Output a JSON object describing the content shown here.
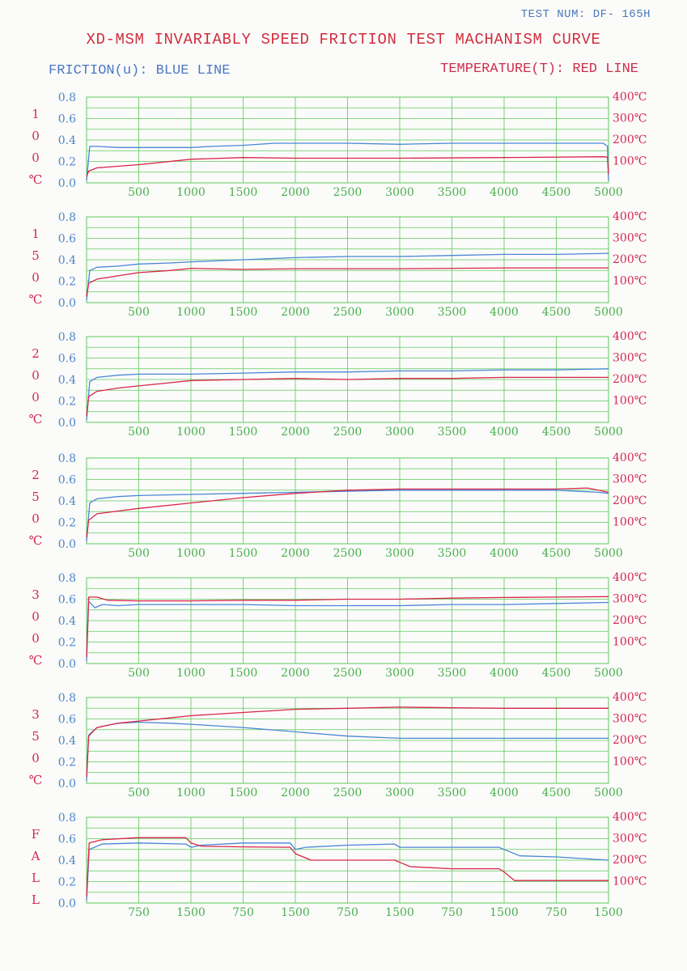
{
  "header": {
    "test_num": "TEST NUM:  DF- 165H",
    "title": "XD-MSM INVARIABLY SPEED FRICTION TEST MACHANISM CURVE",
    "friction_legend": "FRICTION(u): BLUE LINE",
    "temperature_legend": "TEMPERATURE(T): RED LINE"
  },
  "colors": {
    "friction": "#4a86d6",
    "temperature": "#d8254a",
    "grid": "#5ec95a",
    "axis_left": "#4f86c6",
    "axis_right": "#d42850",
    "tick_x": "#49b04a",
    "side_label": "#d42850"
  },
  "chart_data": [
    {
      "type": "line",
      "side_label": [
        "1",
        "0",
        "0",
        "℃"
      ],
      "x_ticks": [
        "500",
        "1000",
        "1500",
        "2000",
        "2500",
        "3000",
        "3500",
        "4000",
        "4500",
        "5000"
      ],
      "y_ticks_left": [
        "0.8",
        "0.6",
        "0.4",
        "0.2",
        "0.0"
      ],
      "y_ticks_right": [
        "400℃",
        "300℃",
        "200℃",
        "100℃"
      ],
      "xlim": [
        0,
        5000
      ],
      "ylim_left": [
        0,
        0.8
      ],
      "ylim_right": [
        0,
        400
      ],
      "grid": true,
      "series": [
        {
          "axis": "left",
          "x": [
            0,
            30,
            100,
            300,
            500,
            800,
            1000,
            1200,
            1500,
            1800,
            2000,
            2500,
            3000,
            3500,
            4000,
            4500,
            4950,
            4990,
            5000
          ],
          "y": [
            0.02,
            0.34,
            0.34,
            0.33,
            0.33,
            0.33,
            0.33,
            0.34,
            0.35,
            0.37,
            0.37,
            0.37,
            0.36,
            0.37,
            0.37,
            0.37,
            0.37,
            0.34,
            0.02
          ]
        },
        {
          "axis": "right",
          "x": [
            0,
            20,
            100,
            500,
            1000,
            1500,
            2000,
            3000,
            4000,
            4950,
            4990,
            5000
          ],
          "y": [
            30,
            55,
            70,
            85,
            110,
            118,
            115,
            115,
            118,
            122,
            120,
            40
          ]
        }
      ]
    },
    {
      "type": "line",
      "side_label": [
        "1",
        "5",
        "0",
        "℃"
      ],
      "x_ticks": [
        "500",
        "1000",
        "1500",
        "2000",
        "2500",
        "3000",
        "3500",
        "4000",
        "4500",
        "5000"
      ],
      "y_ticks_left": [
        "0.8",
        "0.6",
        "0.4",
        "0.2",
        "0.0"
      ],
      "y_ticks_right": [
        "400℃",
        "300℃",
        "200℃",
        "100℃"
      ],
      "xlim": [
        0,
        5000
      ],
      "ylim_left": [
        0,
        0.8
      ],
      "ylim_right": [
        0,
        400
      ],
      "grid": true,
      "series": [
        {
          "axis": "left",
          "x": [
            0,
            30,
            100,
            300,
            500,
            800,
            1000,
            1500,
            2000,
            2500,
            3000,
            3500,
            4000,
            4500,
            5000
          ],
          "y": [
            0.02,
            0.3,
            0.33,
            0.34,
            0.36,
            0.37,
            0.38,
            0.4,
            0.42,
            0.43,
            0.43,
            0.44,
            0.45,
            0.45,
            0.46
          ]
        },
        {
          "axis": "right",
          "x": [
            0,
            20,
            100,
            300,
            500,
            800,
            1000,
            1500,
            2000,
            3000,
            4000,
            5000
          ],
          "y": [
            30,
            90,
            110,
            125,
            140,
            150,
            160,
            155,
            158,
            158,
            162,
            162
          ]
        }
      ]
    },
    {
      "type": "line",
      "side_label": [
        "2",
        "0",
        "0",
        "℃"
      ],
      "x_ticks": [
        "500",
        "1000",
        "1500",
        "2000",
        "2500",
        "3000",
        "3500",
        "4000",
        "4500",
        "5000"
      ],
      "y_ticks_left": [
        "0.8",
        "0.6",
        "0.4",
        "0.2",
        "0.0"
      ],
      "y_ticks_right": [
        "400℃",
        "300℃",
        "200℃",
        "100℃"
      ],
      "xlim": [
        0,
        5000
      ],
      "ylim_left": [
        0,
        0.8
      ],
      "ylim_right": [
        0,
        400
      ],
      "grid": true,
      "series": [
        {
          "axis": "left",
          "x": [
            0,
            30,
            100,
            300,
            500,
            1000,
            1500,
            2000,
            2500,
            3000,
            3500,
            4000,
            4500,
            5000
          ],
          "y": [
            0.02,
            0.38,
            0.42,
            0.44,
            0.45,
            0.45,
            0.46,
            0.47,
            0.47,
            0.48,
            0.48,
            0.49,
            0.49,
            0.5
          ]
        },
        {
          "axis": "right",
          "x": [
            0,
            20,
            100,
            300,
            500,
            800,
            1000,
            1500,
            2000,
            2500,
            3000,
            3500,
            4000,
            4500,
            5000
          ],
          "y": [
            30,
            120,
            145,
            160,
            170,
            185,
            195,
            200,
            205,
            200,
            205,
            205,
            210,
            210,
            210
          ]
        }
      ]
    },
    {
      "type": "line",
      "side_label": [
        "2",
        "5",
        "0",
        "℃"
      ],
      "x_ticks": [
        "500",
        "1000",
        "1500",
        "2000",
        "2500",
        "3000",
        "3500",
        "4000",
        "4500",
        "5000"
      ],
      "y_ticks_left": [
        "0.8",
        "0.6",
        "0.4",
        "0.2",
        "0.0"
      ],
      "y_ticks_right": [
        "400℃",
        "300℃",
        "200℃",
        "100℃"
      ],
      "xlim": [
        0,
        5000
      ],
      "ylim_left": [
        0,
        0.8
      ],
      "ylim_right": [
        0,
        400
      ],
      "grid": true,
      "series": [
        {
          "axis": "left",
          "x": [
            0,
            30,
            100,
            300,
            500,
            1000,
            1500,
            2000,
            2500,
            3000,
            3500,
            4000,
            4500,
            4900,
            5000
          ],
          "y": [
            0.02,
            0.38,
            0.42,
            0.44,
            0.45,
            0.46,
            0.47,
            0.48,
            0.49,
            0.5,
            0.5,
            0.5,
            0.5,
            0.48,
            0.47
          ]
        },
        {
          "axis": "right",
          "x": [
            0,
            20,
            100,
            500,
            1000,
            1500,
            2000,
            2500,
            3000,
            3500,
            4000,
            4500,
            4800,
            5000
          ],
          "y": [
            30,
            110,
            140,
            165,
            190,
            215,
            235,
            250,
            255,
            255,
            255,
            255,
            260,
            240
          ]
        }
      ]
    },
    {
      "type": "line",
      "side_label": [
        "3",
        "0",
        "0",
        "℃"
      ],
      "x_ticks": [
        "500",
        "1000",
        "1500",
        "2000",
        "2500",
        "3000",
        "3500",
        "4000",
        "4500",
        "5000"
      ],
      "y_ticks_left": [
        "0.8",
        "0.6",
        "0.4",
        "0.2",
        "0.0"
      ],
      "y_ticks_right": [
        "400℃",
        "300℃",
        "200℃",
        "100℃"
      ],
      "xlim": [
        0,
        5000
      ],
      "ylim_left": [
        0,
        0.8
      ],
      "ylim_right": [
        0,
        400
      ],
      "grid": true,
      "series": [
        {
          "axis": "left",
          "x": [
            0,
            20,
            80,
            150,
            300,
            500,
            1000,
            1500,
            2000,
            2500,
            3000,
            3500,
            4000,
            4500,
            5000
          ],
          "y": [
            0.02,
            0.58,
            0.52,
            0.55,
            0.54,
            0.55,
            0.55,
            0.55,
            0.54,
            0.54,
            0.54,
            0.55,
            0.55,
            0.56,
            0.57
          ]
        },
        {
          "axis": "right",
          "x": [
            0,
            20,
            100,
            200,
            500,
            1000,
            1500,
            2000,
            2500,
            3000,
            3500,
            4000,
            4500,
            5000
          ],
          "y": [
            30,
            310,
            310,
            295,
            292,
            292,
            295,
            295,
            300,
            300,
            305,
            308,
            310,
            312
          ]
        }
      ]
    },
    {
      "type": "line",
      "side_label": [
        "3",
        "5",
        "0",
        "℃"
      ],
      "x_ticks": [
        "500",
        "1000",
        "1500",
        "2000",
        "2500",
        "3000",
        "3500",
        "4000",
        "4500",
        "5000"
      ],
      "y_ticks_left": [
        "0.8",
        "0.6",
        "0.4",
        "0.2",
        "0.0"
      ],
      "y_ticks_right": [
        "400℃",
        "300℃",
        "200℃",
        "100℃"
      ],
      "xlim": [
        0,
        5000
      ],
      "ylim_left": [
        0,
        0.8
      ],
      "ylim_right": [
        0,
        400
      ],
      "grid": true,
      "series": [
        {
          "axis": "left",
          "x": [
            0,
            20,
            100,
            300,
            500,
            800,
            1000,
            1500,
            2000,
            2500,
            3000,
            3500,
            4000,
            4500,
            5000
          ],
          "y": [
            0.02,
            0.45,
            0.52,
            0.56,
            0.57,
            0.56,
            0.55,
            0.52,
            0.48,
            0.44,
            0.42,
            0.42,
            0.42,
            0.42,
            0.42
          ]
        },
        {
          "axis": "right",
          "x": [
            0,
            20,
            100,
            300,
            500,
            800,
            1000,
            1500,
            2000,
            2500,
            3000,
            3500,
            4000,
            4500,
            5000
          ],
          "y": [
            30,
            220,
            260,
            280,
            290,
            305,
            315,
            330,
            345,
            350,
            355,
            352,
            350,
            350,
            350
          ]
        }
      ]
    },
    {
      "type": "line",
      "side_label": [
        "F",
        "A",
        "L",
        "L"
      ],
      "x_ticks": [
        "750",
        "1500",
        "750",
        "1500",
        "750",
        "1500",
        "750",
        "1500",
        "750",
        "1500"
      ],
      "y_ticks_left": [
        "0.8",
        "0.6",
        "0.4",
        "0.2",
        "0.0"
      ],
      "y_ticks_right": [
        "400℃",
        "300℃",
        "200℃",
        "100℃"
      ],
      "xlim": [
        0,
        10
      ],
      "ylim_left": [
        0,
        0.8
      ],
      "ylim_right": [
        0,
        400
      ],
      "grid": true,
      "series": [
        {
          "axis": "left",
          "x": [
            0,
            0.05,
            0.3,
            1,
            1.9,
            2,
            2.2,
            3,
            3.9,
            4,
            4.2,
            5,
            5.9,
            6,
            7,
            7.9,
            8,
            8.3,
            9,
            10
          ],
          "y": [
            0.02,
            0.5,
            0.55,
            0.56,
            0.55,
            0.52,
            0.54,
            0.56,
            0.56,
            0.5,
            0.52,
            0.54,
            0.55,
            0.52,
            0.52,
            0.52,
            0.5,
            0.44,
            0.43,
            0.4
          ]
        },
        {
          "axis": "right",
          "x": [
            0,
            0.05,
            0.3,
            1,
            1.9,
            2,
            2.2,
            3,
            3.9,
            4,
            4.3,
            5,
            5.9,
            6,
            6.2,
            7,
            7.9,
            8,
            8.2,
            9,
            10
          ],
          "y": [
            30,
            280,
            295,
            305,
            305,
            280,
            265,
            262,
            260,
            230,
            200,
            200,
            200,
            190,
            170,
            160,
            160,
            145,
            105,
            105,
            105
          ]
        }
      ]
    }
  ]
}
